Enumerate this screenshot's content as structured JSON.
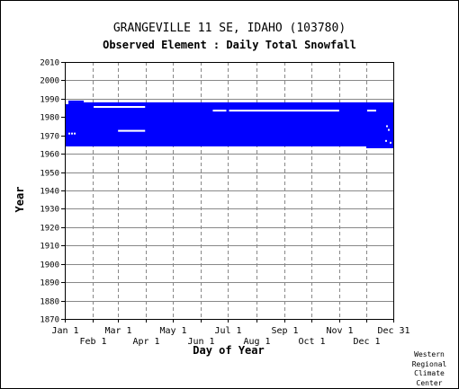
{
  "chart_data": {
    "type": "scatter",
    "title": "GRANGEVILLE 11 SE, IDAHO   (103780)",
    "subtitle": "Observed Element : Daily Total Snowfall",
    "xlabel": "Day of Year",
    "ylabel": "Year",
    "xlim": [
      1,
      365
    ],
    "ylim": [
      1870,
      2010
    ],
    "yticks": [
      1870,
      1880,
      1890,
      1900,
      1910,
      1920,
      1930,
      1940,
      1950,
      1960,
      1970,
      1980,
      1990,
      2000,
      2010
    ],
    "xticks_top": [
      {
        "label": "Jan 1",
        "day": 1
      },
      {
        "label": "Mar 1",
        "day": 60
      },
      {
        "label": "May 1",
        "day": 121
      },
      {
        "label": "Jul 1",
        "day": 182
      },
      {
        "label": "Sep 1",
        "day": 244
      },
      {
        "label": "Nov 1",
        "day": 305
      },
      {
        "label": "Dec 31",
        "day": 365
      }
    ],
    "xticks_bottom": [
      {
        "label": "Feb 1",
        "day": 32
      },
      {
        "label": "Apr 1",
        "day": 91
      },
      {
        "label": "Jun 1",
        "day": 152
      },
      {
        "label": "Aug 1",
        "day": 213
      },
      {
        "label": "Oct 1",
        "day": 274
      },
      {
        "label": "Dec 1",
        "day": 335
      }
    ],
    "grid": true,
    "series_color": "#0000ff",
    "bands": [
      {
        "year_start": 1964,
        "year_end": 1988,
        "day_start": 1,
        "day_end": 365
      }
    ],
    "gaps": [
      {
        "year_start": 1985,
        "year_end": 1986,
        "day_start": 33,
        "day_end": 90
      },
      {
        "year_start": 1972,
        "year_end": 1973,
        "day_start": 60,
        "day_end": 90
      },
      {
        "year_start": 1983,
        "year_end": 1984,
        "day_start": 165,
        "day_end": 180
      },
      {
        "year_start": 1983,
        "year_end": 1984,
        "day_start": 183,
        "day_end": 305
      },
      {
        "year_start": 1983,
        "year_end": 1984,
        "day_start": 336,
        "day_end": 346
      },
      {
        "year_start": 1987,
        "year_end": 1989,
        "day_start": 1,
        "day_end": 5
      }
    ],
    "points": [
      {
        "day": 6,
        "year": 1971
      },
      {
        "day": 9,
        "year": 1971
      },
      {
        "day": 12,
        "year": 1971
      },
      {
        "day": 357,
        "year": 1967
      },
      {
        "day": 362,
        "year": 1966
      },
      {
        "day": 360,
        "year": 1973
      },
      {
        "day": 358,
        "year": 1975
      }
    ]
  },
  "credit": [
    "Western",
    "Regional",
    "Climate",
    "Center"
  ],
  "colors": {
    "grid": "#888888",
    "axis": "#000000",
    "data": "#0000ff"
  }
}
